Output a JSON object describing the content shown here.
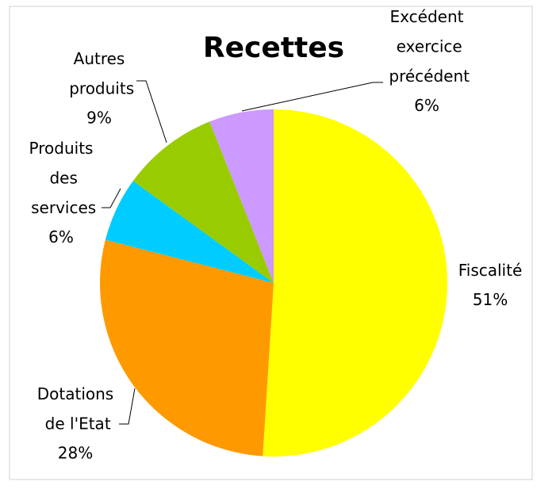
{
  "chart_data": {
    "type": "pie",
    "title": "Recettes",
    "categories": [
      "Fiscalité",
      "Dotations de l'Etat",
      "Produits des services",
      "Autres produits",
      "Excédent exercice précédent"
    ],
    "values": [
      51,
      28,
      6,
      9,
      6
    ],
    "value_labels": [
      "51%",
      "28%",
      "6%",
      "9%",
      "6%"
    ],
    "colors": [
      "#ffff00",
      "#ff9900",
      "#00ccff",
      "#99cc00",
      "#cc99ff"
    ]
  }
}
